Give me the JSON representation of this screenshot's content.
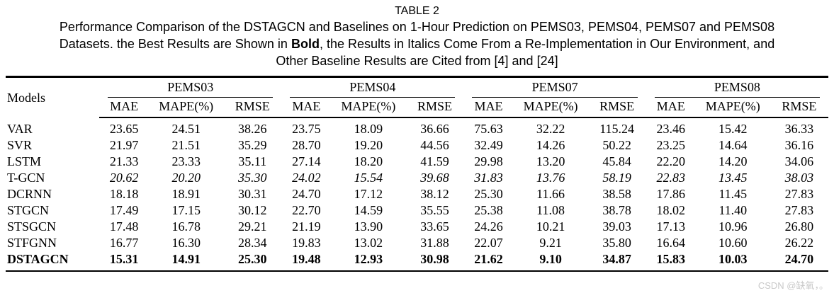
{
  "caption": {
    "title": "TABLE 2",
    "line1": "Performance Comparison of the DSTAGCN and Baselines on 1-Hour Prediction on PEMS03, PEMS04, PEMS07 and PEMS08",
    "line2_pre": "Datasets. the Best Results are Shown in ",
    "line2_bold": "Bold",
    "line2_post": ", the Results in Italics Come From a Re-Implementation in Our Environment, and",
    "line3": "Other Baseline Results are Cited from [4] and [24]"
  },
  "table": {
    "models_header": "Models",
    "subcols": [
      "MAE",
      "MAPE(%)",
      "RMSE"
    ],
    "groups": [
      {
        "name": "PEMS03"
      },
      {
        "name": "PEMS04"
      },
      {
        "name": "PEMS07"
      },
      {
        "name": "PEMS08"
      }
    ],
    "rows": [
      {
        "model": "VAR",
        "style": "normal",
        "values": [
          "23.65",
          "24.51",
          "38.26",
          "23.75",
          "18.09",
          "36.66",
          "75.63",
          "32.22",
          "115.24",
          "23.46",
          "15.42",
          "36.33"
        ]
      },
      {
        "model": "SVR",
        "style": "normal",
        "values": [
          "21.97",
          "21.51",
          "35.29",
          "28.70",
          "19.20",
          "44.56",
          "32.49",
          "14.26",
          "50.22",
          "23.25",
          "14.64",
          "36.16"
        ]
      },
      {
        "model": "LSTM",
        "style": "normal",
        "values": [
          "21.33",
          "23.33",
          "35.11",
          "27.14",
          "18.20",
          "41.59",
          "29.98",
          "13.20",
          "45.84",
          "22.20",
          "14.20",
          "34.06"
        ]
      },
      {
        "model": "T-GCN",
        "style": "italic",
        "values": [
          "20.62",
          "20.20",
          "35.30",
          "24.02",
          "15.54",
          "39.68",
          "31.83",
          "13.76",
          "58.19",
          "22.83",
          "13.45",
          "38.03"
        ]
      },
      {
        "model": "DCRNN",
        "style": "normal",
        "values": [
          "18.18",
          "18.91",
          "30.31",
          "24.70",
          "17.12",
          "38.12",
          "25.30",
          "11.66",
          "38.58",
          "17.86",
          "11.45",
          "27.83"
        ]
      },
      {
        "model": "STGCN",
        "style": "normal",
        "values": [
          "17.49",
          "17.15",
          "30.12",
          "22.70",
          "14.59",
          "35.55",
          "25.38",
          "11.08",
          "38.78",
          "18.02",
          "11.40",
          "27.83"
        ]
      },
      {
        "model": "STSGCN",
        "style": "normal",
        "values": [
          "17.48",
          "16.78",
          "29.21",
          "21.19",
          "13.90",
          "33.65",
          "24.26",
          "10.21",
          "39.03",
          "17.13",
          "10.96",
          "26.80"
        ]
      },
      {
        "model": "STFGNN",
        "style": "normal",
        "values": [
          "16.77",
          "16.30",
          "28.34",
          "19.83",
          "13.02",
          "31.88",
          "22.07",
          "9.21",
          "35.80",
          "16.64",
          "10.60",
          "26.22"
        ]
      },
      {
        "model": "DSTAGCN",
        "style": "bold",
        "values": [
          "15.31",
          "14.91",
          "25.30",
          "19.48",
          "12.93",
          "30.98",
          "21.62",
          "9.10",
          "34.87",
          "15.83",
          "10.03",
          "24.70"
        ]
      }
    ]
  },
  "watermark": "CSDN @缺氧，。"
}
